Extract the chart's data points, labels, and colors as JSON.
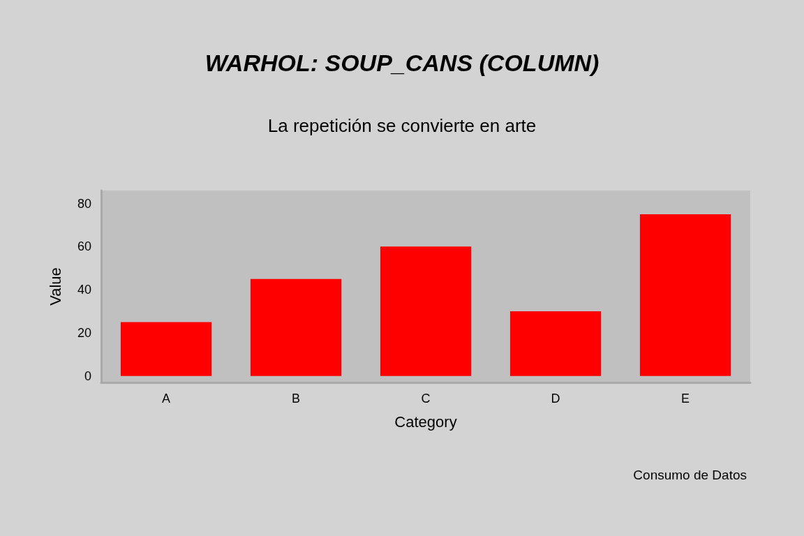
{
  "chart_data": {
    "type": "bar",
    "title": "WARHOL: SOUP_CANS (COLUMN)",
    "subtitle": "La repetición se convierte en arte",
    "xlabel": "Category",
    "ylabel": "Value",
    "categories": [
      "A",
      "B",
      "C",
      "D",
      "E"
    ],
    "values": [
      25,
      45,
      60,
      30,
      75
    ],
    "color": "#ff0000",
    "ylim": [
      -3,
      86
    ],
    "yticks": [
      0,
      20,
      40,
      60,
      80
    ],
    "grid": false,
    "annotations": [
      "Consumo de Datos"
    ]
  }
}
